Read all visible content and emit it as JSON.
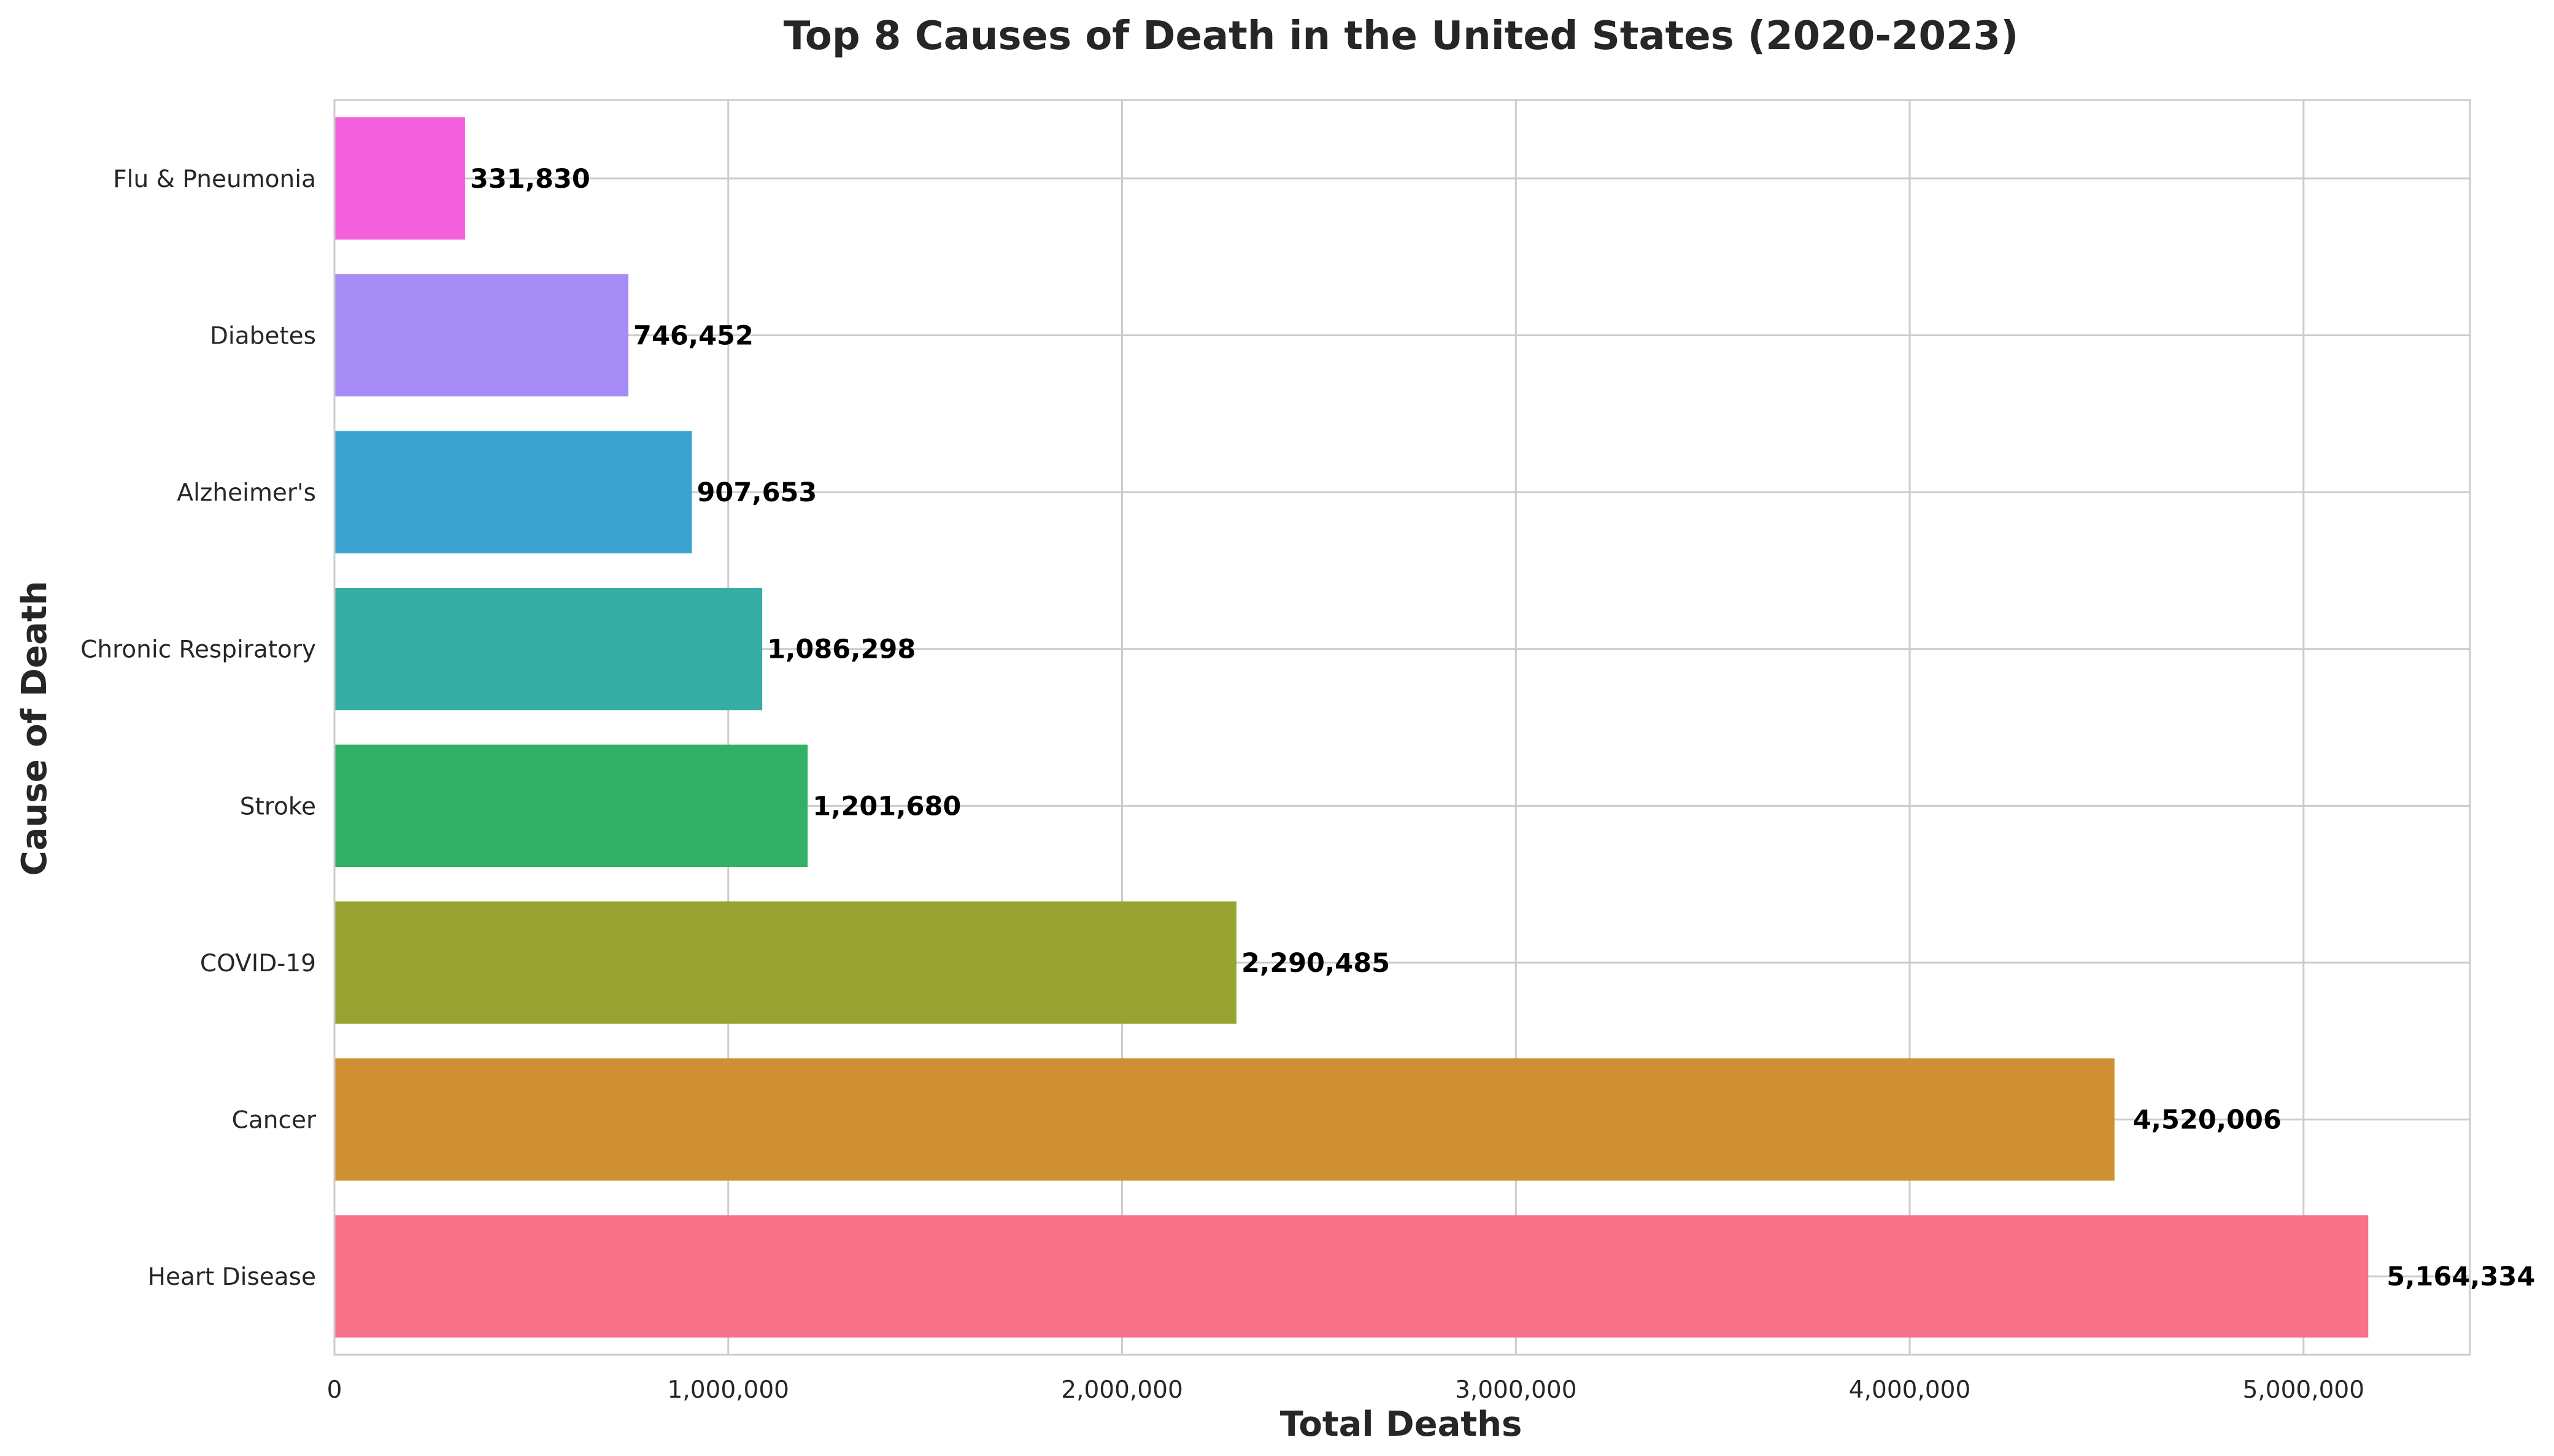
{
  "chart_data": {
    "type": "bar",
    "orientation": "horizontal",
    "title": "Top 8 Causes of Death in the United States (2020-2023)",
    "xlabel": "Total Deaths",
    "ylabel": "Cause of Death",
    "categories": [
      "Heart Disease",
      "Cancer",
      "COVID-19",
      "Stroke",
      "Chronic Respiratory",
      "Alzheimer's",
      "Diabetes",
      "Flu & Pneumonia"
    ],
    "values": [
      5164334,
      4520006,
      2290485,
      1201680,
      1086298,
      907653,
      746452,
      331830
    ],
    "value_labels": [
      "5,164,334",
      "4,520,006",
      "2,290,485",
      "1,201,680",
      "1,086,298",
      "907,653",
      "746,452",
      "331,830"
    ],
    "colors": [
      "#f77189",
      "#ce9032",
      "#97a431",
      "#32b166",
      "#36ada4",
      "#3ba3d0",
      "#a48cf4",
      "#f561dd"
    ],
    "xlim": [
      0,
      5422551
    ],
    "xticks": [
      0,
      1000000,
      2000000,
      3000000,
      4000000,
      5000000
    ],
    "xtick_labels": [
      "0",
      "1,000,000",
      "2,000,000",
      "3,000,000",
      "4,000,000",
      "5,000,000"
    ],
    "grid": true,
    "legend": "none"
  }
}
